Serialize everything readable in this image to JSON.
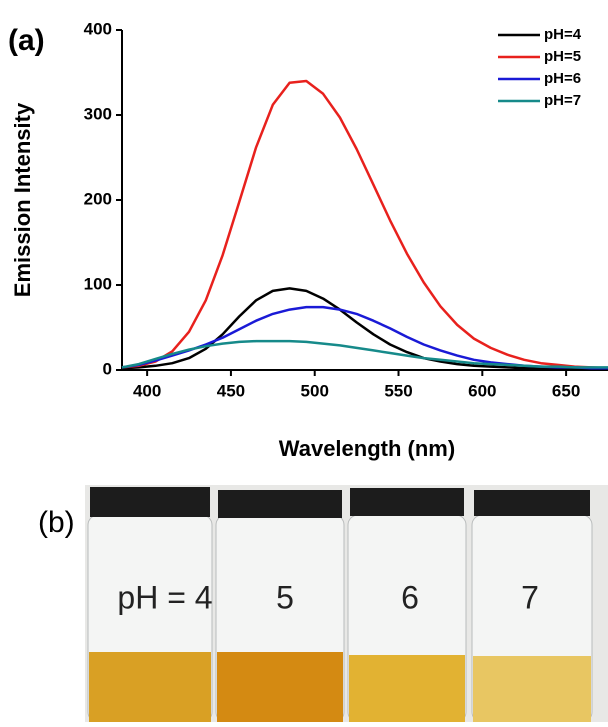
{
  "chart_data": {
    "type": "line",
    "panel_label": "(a)",
    "x_label": "Wavelength (nm)",
    "y_label": "Emission Intensity",
    "x": [
      385,
      395,
      405,
      415,
      425,
      435,
      445,
      455,
      465,
      475,
      485,
      495,
      505,
      515,
      525,
      535,
      545,
      555,
      565,
      575,
      585,
      595,
      605,
      615,
      625,
      635,
      645,
      655,
      665,
      675
    ],
    "series": [
      {
        "name": "pH=4",
        "color": "#000000",
        "values": [
          2,
          3,
          5,
          8,
          14,
          25,
          42,
          63,
          82,
          93,
          96,
          93,
          84,
          71,
          56,
          42,
          30,
          21,
          14,
          10,
          7,
          5,
          4,
          3,
          2,
          2,
          1,
          1,
          1,
          1
        ]
      },
      {
        "name": "pH=5",
        "color": "#e8211d",
        "values": [
          3,
          5,
          10,
          22,
          45,
          82,
          135,
          198,
          262,
          312,
          338,
          340,
          325,
          297,
          260,
          218,
          176,
          137,
          103,
          75,
          53,
          37,
          26,
          18,
          12,
          8,
          6,
          4,
          3,
          2
        ]
      },
      {
        "name": "pH=6",
        "color": "#1a1ad6",
        "values": [
          3,
          6,
          11,
          17,
          23,
          30,
          38,
          48,
          58,
          66,
          71,
          74,
          74,
          71,
          66,
          58,
          49,
          39,
          30,
          23,
          17,
          12,
          9,
          7,
          5,
          4,
          3,
          3,
          2,
          2
        ]
      },
      {
        "name": "pH=7",
        "color": "#168a8a",
        "values": [
          3,
          7,
          13,
          19,
          24,
          28,
          31,
          33,
          34,
          34,
          34,
          33,
          31,
          29,
          26,
          23,
          20,
          17,
          14,
          12,
          10,
          8,
          7,
          6,
          5,
          4,
          4,
          3,
          3,
          3
        ]
      }
    ],
    "xlim": [
      385,
      675
    ],
    "xticks": [
      400,
      450,
      500,
      550,
      600,
      650
    ],
    "ylim": [
      0,
      400
    ],
    "yticks": [
      0,
      100,
      200,
      300,
      400
    ],
    "grid": false,
    "legend": "upper right"
  },
  "photo": {
    "panel_label": "(b)",
    "vial_labels": [
      "pH = 4",
      "5",
      "6",
      "7"
    ]
  }
}
